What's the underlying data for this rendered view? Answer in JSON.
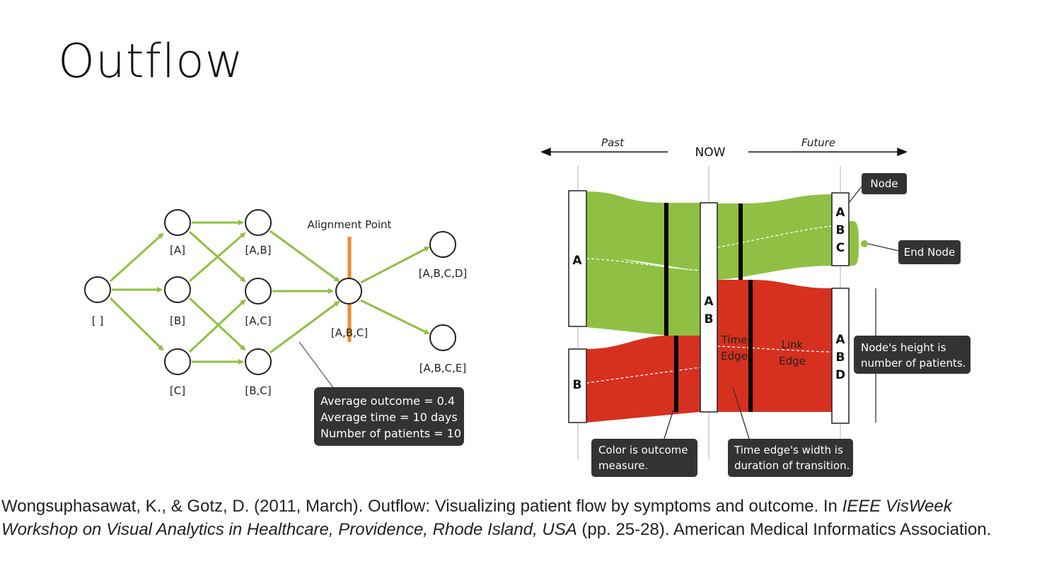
{
  "slide": {
    "title": "Outflow"
  },
  "left_diagram": {
    "nodes": {
      "root": "[ ]",
      "a": "[A]",
      "b": "[B]",
      "c": "[C]",
      "ab": "[A,B]",
      "ac": "[A,C]",
      "bc": "[B,C]",
      "abc": "[A,B,C]",
      "abcd": "[A,B,C,D]",
      "abce": "[A,B,C,E]"
    },
    "alignment_label": "Alignment Point",
    "tooltip": [
      "Average outcome = 0.4",
      "Average time = 10 days",
      "Number of patients = 10"
    ]
  },
  "right_diagram": {
    "past": "Past",
    "now": "NOW",
    "future": "Future",
    "node_a": "A",
    "node_b": "B",
    "node_ab": [
      "A",
      "B"
    ],
    "node_abc": [
      "A",
      "B",
      "C"
    ],
    "node_abd": [
      "A",
      "B",
      "D"
    ],
    "time_edge": [
      "Time",
      "Edge"
    ],
    "link_edge": [
      "Link",
      "Edge"
    ],
    "callout_node": "Node",
    "callout_end_node": "End Node",
    "callout_height": [
      "Node's height is",
      "number of patients."
    ],
    "callout_color": [
      "Color is outcome",
      "measure."
    ],
    "callout_width": [
      "Time edge's width is",
      "duration of transition."
    ],
    "colors": {
      "good": "#8fc043",
      "bad": "#d6301f",
      "arrow": "#8fc043",
      "alignment": "#f08a30",
      "callout_bg": "#333333"
    }
  },
  "citation": {
    "part1": "Wongsuphasawat, K., & Gotz, D. (2011, March). Outflow: Visualizing patient flow by symptoms and outcome. In ",
    "italic": "IEEE VisWeek Workshop on Visual Analytics in Healthcare, Providence, Rhode Island, USA",
    "part2": " (pp. 25-28). American Medical Informatics Association."
  }
}
